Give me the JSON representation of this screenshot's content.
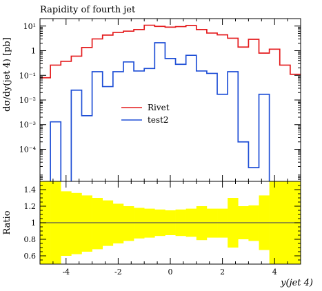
{
  "chart_data": [
    {
      "type": "line",
      "title": "Rapidity of fourth jet",
      "xlabel": "",
      "ylabel": "dσ/dy(jet 4) [pb]",
      "yscale": "log",
      "xlim": [
        -5,
        5
      ],
      "ylim": [
        5e-06,
        20
      ],
      "y_ticks": [
        {
          "value": 10,
          "label": "10¹"
        },
        {
          "value": 1,
          "label": "1"
        },
        {
          "value": 0.1,
          "label": "10⁻¹"
        },
        {
          "value": 0.01,
          "label": "10⁻²"
        },
        {
          "value": 0.001,
          "label": "10⁻³"
        },
        {
          "value": 0.0001,
          "label": "10⁻⁴"
        }
      ],
      "bin_edges": [
        -5.0,
        -4.6,
        -4.2,
        -3.8,
        -3.4,
        -3.0,
        -2.6,
        -2.2,
        -1.8,
        -1.4,
        -1.0,
        -0.6,
        -0.2,
        0.2,
        0.6,
        1.0,
        1.4,
        1.8,
        2.2,
        2.6,
        3.0,
        3.4,
        3.8,
        4.2,
        4.6,
        5.0
      ],
      "legend_position": "center-left",
      "series": [
        {
          "name": "Rivet",
          "color": "#e41a1c",
          "values": [
            0.08,
            0.26,
            0.37,
            0.6,
            1.35,
            3.0,
            4.3,
            5.5,
            6.2,
            7.2,
            10.8,
            9.7,
            9.0,
            9.5,
            10.5,
            7.2,
            5.2,
            4.4,
            3.2,
            1.4,
            2.9,
            0.8,
            1.15,
            0.26,
            0.11
          ]
        },
        {
          "name": "test2",
          "color": "#1f4fd6",
          "values": [
            null,
            0.0013,
            null,
            0.025,
            0.0023,
            0.14,
            0.035,
            0.14,
            0.35,
            0.15,
            0.19,
            2.1,
            0.48,
            0.28,
            0.65,
            0.15,
            0.12,
            0.017,
            0.14,
            0.0002,
            1.8e-05,
            0.017,
            null,
            null,
            null
          ]
        }
      ]
    },
    {
      "type": "area",
      "xlabel": "y(jet 4)",
      "ylabel": "Ratio",
      "xlim": [
        -5,
        5
      ],
      "ylim": [
        0.5,
        1.5
      ],
      "x_ticks": [
        -4,
        -2,
        0,
        2,
        4
      ],
      "y_ticks": [
        0.6,
        0.8,
        1.0,
        1.2,
        1.4
      ],
      "y_tick_labels": [
        "0.6",
        "0.8",
        "1",
        "1.2",
        "1.4"
      ],
      "reference_line": 1,
      "band_color": "#ffff00",
      "band_upper": [
        1.5,
        1.5,
        1.38,
        1.36,
        1.33,
        1.3,
        1.27,
        1.23,
        1.2,
        1.18,
        1.17,
        1.16,
        1.15,
        1.16,
        1.17,
        1.2,
        1.17,
        1.17,
        1.3,
        1.2,
        1.21,
        1.33,
        1.5,
        1.5,
        1.5
      ],
      "band_lower": [
        0.5,
        0.5,
        0.6,
        0.62,
        0.65,
        0.68,
        0.72,
        0.75,
        0.78,
        0.81,
        0.82,
        0.84,
        0.85,
        0.84,
        0.83,
        0.79,
        0.82,
        0.82,
        0.7,
        0.8,
        0.78,
        0.67,
        0.5,
        0.5,
        0.5
      ]
    }
  ]
}
